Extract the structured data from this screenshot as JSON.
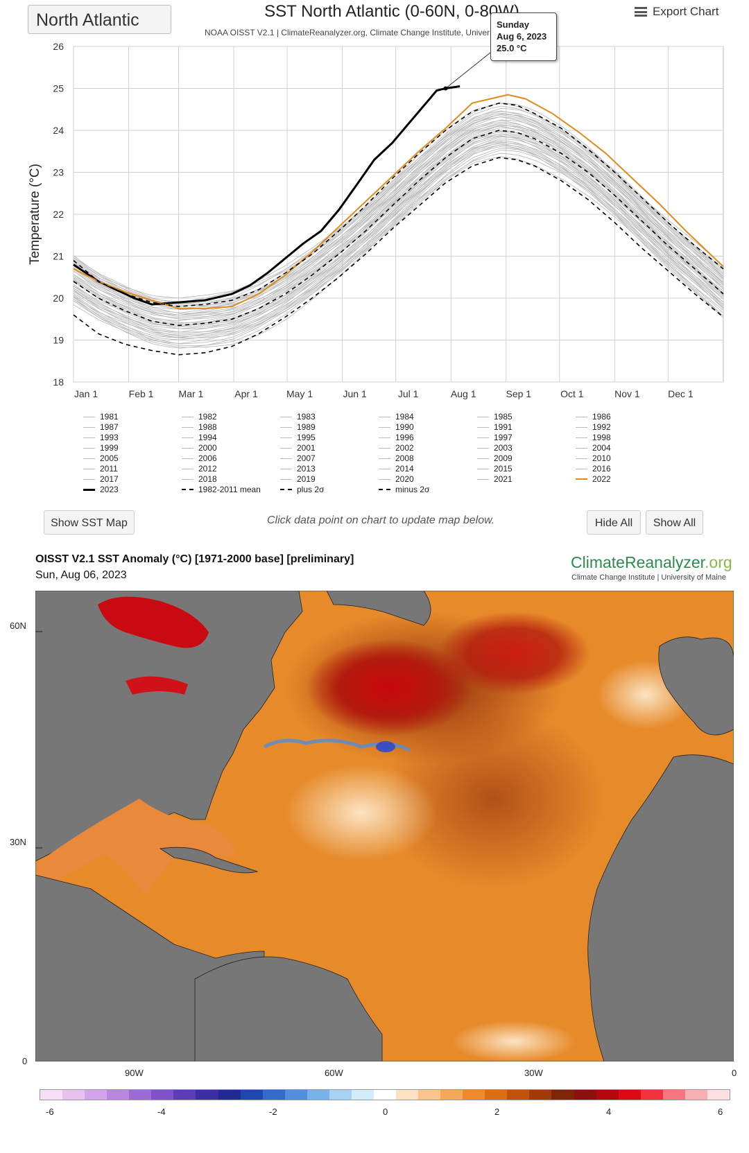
{
  "header": {
    "region_select": "North Atlantic",
    "export_label": "Export Chart"
  },
  "tooltip": {
    "day": "Sunday",
    "date": "Aug 6, 2023",
    "value": "25.0 °C"
  },
  "chart_data": {
    "type": "line",
    "title": "SST North Atlantic (0-60N, 0-80W)",
    "subtitle": "NOAA OISST V2.1 | ClimateReanalyzer.org, Climate Change Institute, University of Maine",
    "ylabel": "Temperature (°C)",
    "ylim": [
      18,
      26
    ],
    "yticks": [
      18,
      19,
      20,
      21,
      22,
      23,
      24,
      25,
      26
    ],
    "xlim": [
      1,
      366
    ],
    "xticks": [
      {
        "label": "Jan 1",
        "day": 1
      },
      {
        "label": "Feb 1",
        "day": 32
      },
      {
        "label": "Mar 1",
        "day": 60
      },
      {
        "label": "Apr 1",
        "day": 91
      },
      {
        "label": "May 1",
        "day": 121
      },
      {
        "label": "Jun 1",
        "day": 152
      },
      {
        "label": "Jul 1",
        "day": 182
      },
      {
        "label": "Aug 1",
        "day": 213
      },
      {
        "label": "Sep 1",
        "day": 244
      },
      {
        "label": "Oct 1",
        "day": 274
      },
      {
        "label": "Nov 1",
        "day": 305
      },
      {
        "label": "Dec 1",
        "day": 335
      }
    ],
    "grid": true,
    "x_unit": "day of year",
    "series": [
      {
        "name": "2023",
        "color": "#000000",
        "x": [
          1,
          15,
          30,
          35,
          45,
          60,
          75,
          90,
          100,
          110,
          120,
          130,
          140,
          150,
          160,
          170,
          180,
          190,
          200,
          205,
          210,
          218
        ],
        "values": [
          20.8,
          20.4,
          20.1,
          20.0,
          19.85,
          19.9,
          19.95,
          20.1,
          20.3,
          20.6,
          20.95,
          21.3,
          21.6,
          22.1,
          22.7,
          23.3,
          23.7,
          24.2,
          24.7,
          24.95,
          25.0,
          25.05
        ]
      },
      {
        "name": "2022",
        "color": "#e08a1e",
        "x": [
          1,
          15,
          30,
          45,
          60,
          75,
          90,
          105,
          120,
          135,
          150,
          165,
          180,
          195,
          210,
          225,
          235,
          245,
          255,
          270,
          285,
          300,
          315,
          330,
          345,
          366
        ],
        "values": [
          20.7,
          20.4,
          20.15,
          19.95,
          19.75,
          19.75,
          19.8,
          20.1,
          20.55,
          21.1,
          21.7,
          22.3,
          22.9,
          23.5,
          24.05,
          24.65,
          24.75,
          24.85,
          24.75,
          24.4,
          23.95,
          23.45,
          22.85,
          22.25,
          21.6,
          20.75
        ]
      },
      {
        "name": "1982-2011 mean",
        "color": "#000000",
        "dash": "6,5",
        "x": [
          1,
          15,
          30,
          45,
          60,
          75,
          90,
          105,
          120,
          135,
          150,
          165,
          180,
          195,
          210,
          225,
          240,
          250,
          260,
          275,
          290,
          305,
          320,
          335,
          350,
          366
        ],
        "values": [
          20.4,
          20.0,
          19.7,
          19.45,
          19.35,
          19.4,
          19.5,
          19.75,
          20.1,
          20.55,
          21.05,
          21.6,
          22.2,
          22.8,
          23.35,
          23.8,
          24.0,
          23.95,
          23.8,
          23.45,
          23.0,
          22.45,
          21.85,
          21.25,
          20.7,
          20.1
        ]
      },
      {
        "name": "plus 2σ",
        "color": "#000000",
        "dash": "6,5",
        "x": [
          1,
          15,
          30,
          45,
          60,
          75,
          90,
          105,
          120,
          135,
          150,
          165,
          180,
          195,
          210,
          225,
          240,
          250,
          260,
          275,
          290,
          305,
          320,
          335,
          350,
          366
        ],
        "values": [
          20.9,
          20.4,
          20.1,
          19.9,
          19.8,
          19.85,
          19.95,
          20.2,
          20.6,
          21.05,
          21.6,
          22.2,
          22.85,
          23.45,
          24.0,
          24.45,
          24.65,
          24.6,
          24.4,
          24.05,
          23.55,
          23.0,
          22.4,
          21.8,
          21.25,
          20.7
        ]
      },
      {
        "name": "minus 2σ",
        "color": "#000000",
        "dash": "6,5",
        "x": [
          1,
          15,
          30,
          45,
          60,
          75,
          90,
          105,
          120,
          135,
          150,
          165,
          180,
          195,
          210,
          225,
          240,
          250,
          260,
          275,
          290,
          305,
          320,
          335,
          350,
          366
        ],
        "values": [
          19.6,
          19.15,
          18.9,
          18.75,
          18.65,
          18.7,
          18.85,
          19.15,
          19.55,
          20.0,
          20.5,
          21.05,
          21.65,
          22.2,
          22.75,
          23.15,
          23.35,
          23.3,
          23.15,
          22.8,
          22.35,
          21.8,
          21.2,
          20.65,
          20.1,
          19.55
        ]
      }
    ],
    "legend": {
      "columns": 6,
      "years": [
        "1981",
        "1982",
        "1983",
        "1984",
        "1985",
        "1986",
        "1987",
        "1988",
        "1989",
        "1990",
        "1991",
        "1992",
        "1993",
        "1994",
        "1995",
        "1996",
        "1997",
        "1998",
        "1999",
        "2000",
        "2001",
        "2002",
        "2003",
        "2004",
        "2005",
        "2006",
        "2007",
        "2008",
        "2009",
        "2010",
        "2011",
        "2012",
        "2013",
        "2014",
        "2015",
        "2016",
        "2017",
        "2018",
        "2019",
        "2020",
        "2021",
        "2022"
      ],
      "special": [
        "2023",
        "1982-2011 mean",
        "plus 2σ",
        "minus 2σ"
      ]
    },
    "line_colors": {
      "year": "#bbbbbb",
      "2023": "#000000",
      "2022": "#e08a1e",
      "mean": "#000000"
    }
  },
  "buttons": {
    "show_map": "Show SST Map",
    "hide_all": "Hide All",
    "show_all": "Show All"
  },
  "hint_text": "Click data point on chart to update map below.",
  "map": {
    "title": "OISST V2.1 SST Anomaly (°C) [1971-2000 base] [preliminary]",
    "date": "Sun, Aug 06, 2023",
    "brand": "ClimateReanalyzer",
    "brand_suffix": ".org",
    "brand_sub": "Climate Change Institute | University of Maine",
    "lat_labels": [
      "60N",
      "30N",
      "0"
    ],
    "lon_labels": [
      "90W",
      "60W",
      "30W",
      "0"
    ],
    "colorbar_ticks": [
      "-6",
      "-4",
      "-2",
      "0",
      "2",
      "4",
      "6"
    ],
    "colorbar_colors": [
      "#f6dff6",
      "#e8c2ef",
      "#d3a4ea",
      "#b987e0",
      "#9c6bd6",
      "#7f52c9",
      "#5c3db7",
      "#3c2fa3",
      "#1f2a93",
      "#1f47b0",
      "#2f6cc8",
      "#4f8fdb",
      "#79b2ea",
      "#a8d2f4",
      "#d4ecfa",
      "#ffffff",
      "#fde2c4",
      "#f9c58b",
      "#f5a859",
      "#ee8a2c",
      "#dd6d12",
      "#c2520a",
      "#a13a08",
      "#802408",
      "#8c1010",
      "#b4060c",
      "#dc0a14",
      "#f2323c",
      "#f6757e",
      "#f9b0b4",
      "#fce0e2"
    ]
  }
}
